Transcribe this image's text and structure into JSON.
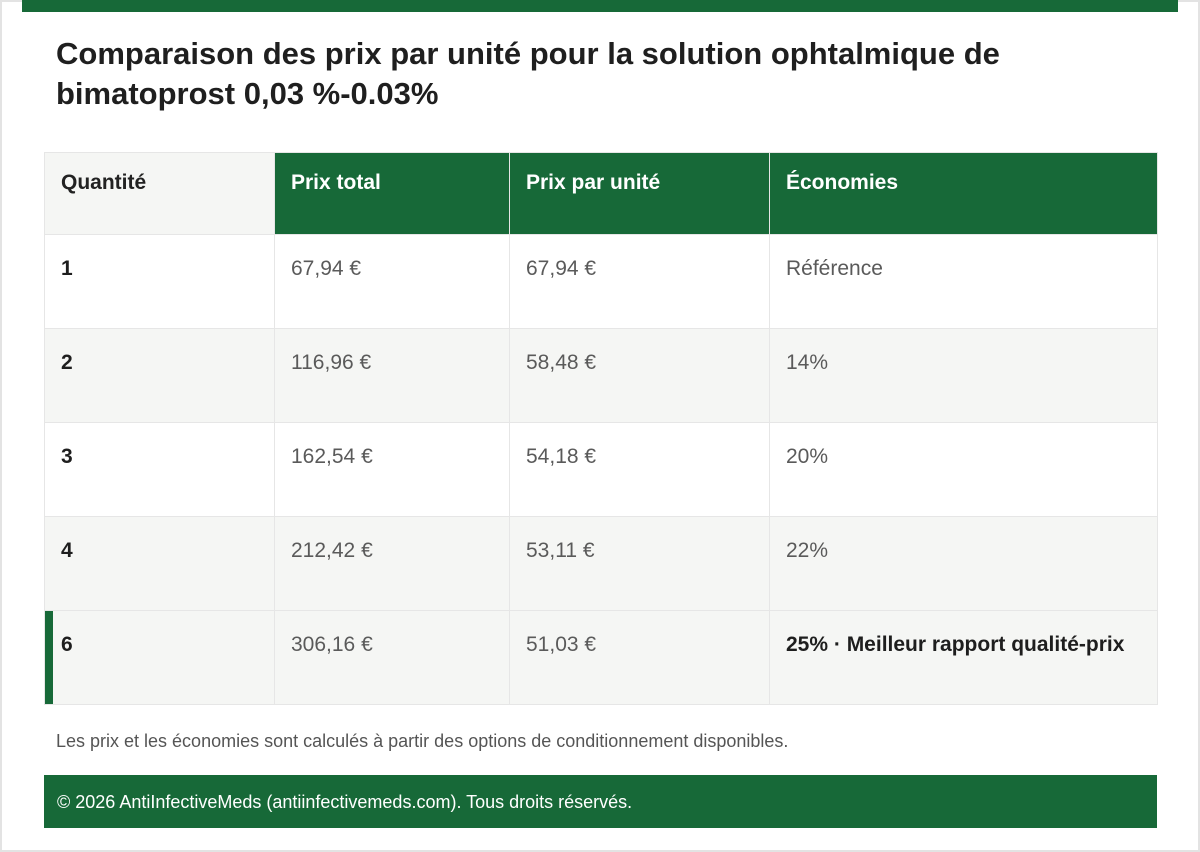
{
  "title": "Comparaison des prix par unité pour la solution ophtalmique de bimatoprost 0,03 %-0.03%",
  "table": {
    "headers": [
      "Quantité",
      "Prix total",
      "Prix par unité",
      "Économies"
    ],
    "rows": [
      {
        "quantity": "1",
        "total": "67,94 €",
        "unit": "67,94 €",
        "savings": "Référence"
      },
      {
        "quantity": "2",
        "total": "116,96 €",
        "unit": "58,48 €",
        "savings": "14%"
      },
      {
        "quantity": "3",
        "total": "162,54 €",
        "unit": "54,18 €",
        "savings": "20%"
      },
      {
        "quantity": "4",
        "total": "212,42 €",
        "unit": "53,11 €",
        "savings": "22%"
      },
      {
        "quantity": "6",
        "total": "306,16 €",
        "unit": "51,03 €",
        "savings": "25% · Meilleur rapport qualité-prix"
      }
    ]
  },
  "note": "Les prix et les économies sont calculés à partir des options de conditionnement disponibles.",
  "footer": "© 2026 AntiInfectiveMeds (antiinfectivemeds.com). Tous droits réservés.",
  "colors": {
    "accent": "#176938",
    "alt_row": "#f5f6f4",
    "border": "#e6e6e6"
  }
}
